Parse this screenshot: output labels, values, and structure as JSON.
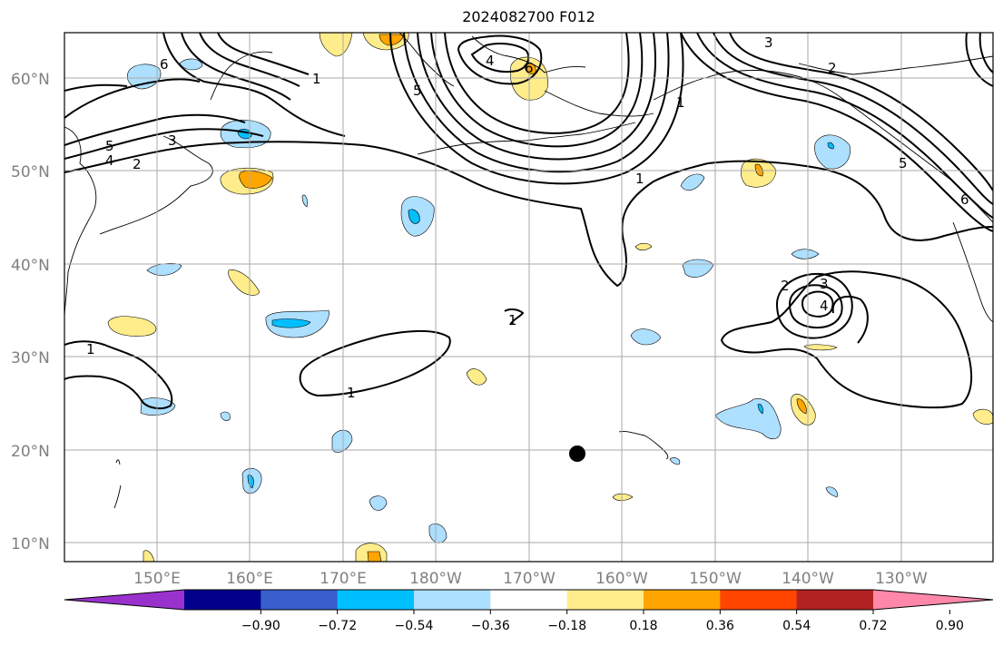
{
  "map": {
    "title": "2024082700 F012",
    "lat_labels": [
      "60°N",
      "50°N",
      "40°N",
      "30°N",
      "20°N",
      "10°N"
    ],
    "lon_labels": [
      "150°E",
      "160°E",
      "170°E",
      "180°W",
      "170°W",
      "160°W",
      "150°W",
      "140°W",
      "130°W"
    ],
    "contour_labels": [
      "6",
      "5",
      "4",
      "3",
      "2",
      "1",
      "1",
      "1",
      "1",
      "5",
      "6",
      "4",
      "3",
      "2",
      "5",
      "6",
      "1",
      "2",
      "3",
      "4",
      "1"
    ],
    "marker": "storm-position-dot"
  },
  "colorbar": {
    "tick_labels": [
      "−0.90",
      "−0.72",
      "−0.54",
      "−0.36",
      "−0.18",
      "0.18",
      "0.36",
      "0.54",
      "0.72",
      "0.90"
    ],
    "colors": [
      "#9932CC",
      "#00008B",
      "#3A5FCD",
      "#00BFFF",
      "#ADDFFF",
      "#FFFFFF",
      "#FFEC8B",
      "#FFA500",
      "#FF4500",
      "#B22222",
      "#FF88AA"
    ]
  }
}
